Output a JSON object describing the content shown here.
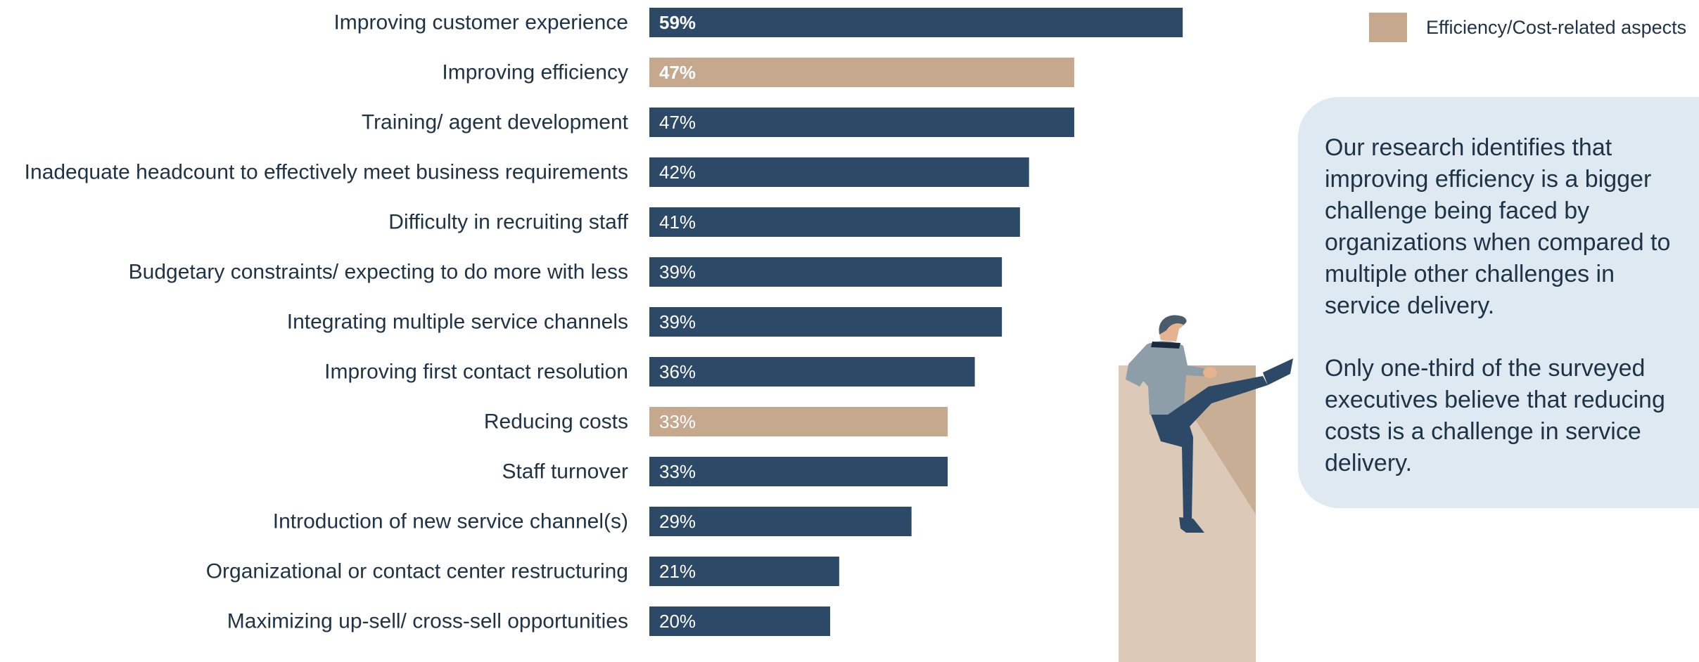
{
  "chart_data": {
    "type": "bar",
    "orientation": "horizontal",
    "categories": [
      "Improving customer experience",
      "Improving efficiency",
      "Training/ agent development",
      "Inadequate headcount to effectively meet business requirements",
      "Difficulty in recruiting staff",
      "Budgetary constraints/ expecting to do more with less",
      "Integrating multiple service channels",
      "Improving first contact resolution",
      "Reducing costs",
      "Staff turnover",
      "Introduction of new service channel(s)",
      "Organizational or contact center restructuring",
      "Maximizing up-sell/ cross-sell opportunities"
    ],
    "values": [
      59,
      47,
      47,
      42,
      41,
      39,
      39,
      36,
      33,
      33,
      29,
      21,
      20
    ],
    "value_labels": [
      "59%",
      "47%",
      "47%",
      "42%",
      "41%",
      "39%",
      "39%",
      "36%",
      "33%",
      "33%",
      "29%",
      "21%",
      "20%"
    ],
    "highlighted": [
      false,
      true,
      false,
      false,
      false,
      false,
      false,
      false,
      true,
      false,
      false,
      false,
      false
    ],
    "bold_labels": [
      true,
      true,
      false,
      false,
      false,
      false,
      false,
      false,
      false,
      false,
      false,
      false,
      false
    ],
    "xlim": [
      0,
      100
    ],
    "grid": false,
    "legend_position": "top-right",
    "colors": {
      "default": "#2c4a67",
      "highlight": "#c6a88e"
    }
  },
  "legend": {
    "label": "Efficiency/Cost-related aspects",
    "color": "#c6a88e"
  },
  "callout": {
    "paragraph1": "Our research identifies that improving efficiency is a bigger challenge being faced by organizations when compared to multiple other challenges in service delivery.",
    "paragraph2": "Only one-third of the surveyed executives believe that reducing costs is a challenge in service delivery."
  }
}
